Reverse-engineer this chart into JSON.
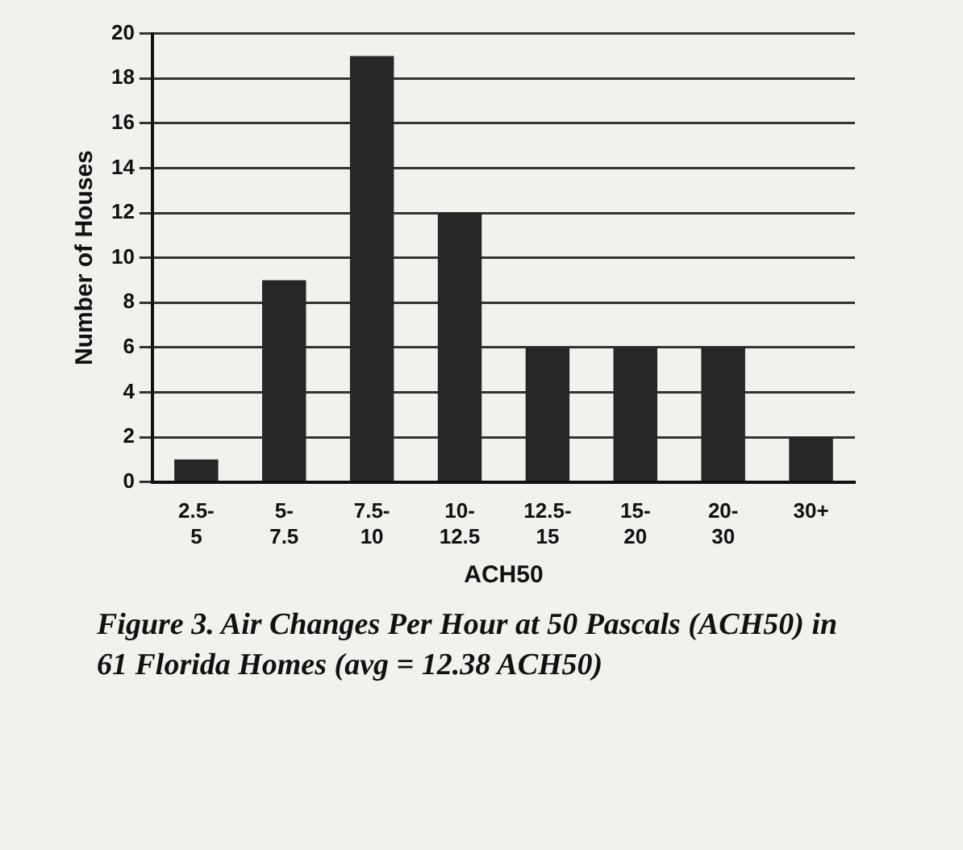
{
  "chart_data": {
    "type": "bar",
    "title": "Figure 3. Air Changes Per Hour at 50 Pascals (ACH50) in 61 Florida Homes (avg = 12.38 ACH50)",
    "xlabel": "ACH50",
    "ylabel": "Number of Houses",
    "categories": [
      "2.5-5",
      "5-7.5",
      "7.5-10",
      "10-12.5",
      "12.5-15",
      "15-20",
      "20-30",
      "30+"
    ],
    "values": [
      1,
      9,
      19,
      12,
      6,
      6,
      6,
      2
    ],
    "color": "#262626",
    "ylim": [
      0,
      20
    ],
    "yticks": [
      0,
      2,
      4,
      6,
      8,
      10,
      12,
      14,
      16,
      18,
      20
    ],
    "grid": "y",
    "legend": false
  }
}
